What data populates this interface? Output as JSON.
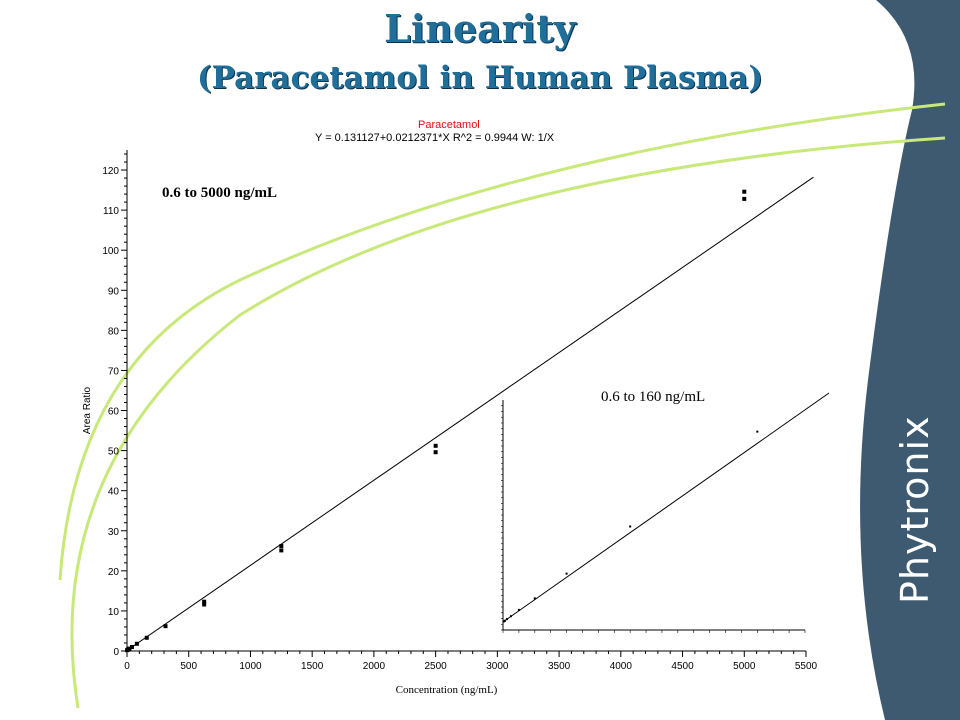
{
  "title": {
    "line1": "Linearity",
    "line2": "(Paracetamol in Human Plasma)"
  },
  "calibration": {
    "analyte": "Paracetamol",
    "equation": "Y = 0.131127+0.0212371*X   R^2 = 0.9944   W: 1/X"
  },
  "brand": {
    "name": "Phytronix"
  },
  "colors": {
    "title": "#1f6f9a",
    "brand_panel": "#3e5a70",
    "swoosh": "#c8e87a",
    "analyte_label": "#dd1111"
  },
  "chart_data": [
    {
      "type": "scatter",
      "annotation": "0.6 to 5000 ng/mL",
      "xlabel": "Concentration (ng/mL)",
      "ylabel": "Area Ratio",
      "xlim": [
        0,
        5500
      ],
      "ylim": [
        0,
        125
      ],
      "xticks": [
        0,
        500,
        1000,
        1500,
        2000,
        2500,
        3000,
        3500,
        4000,
        4500,
        5000,
        5500
      ],
      "yticks": [
        0,
        10,
        20,
        30,
        40,
        50,
        60,
        70,
        80,
        90,
        100,
        110,
        120
      ],
      "grid": false,
      "fit": {
        "intercept": 0.131127,
        "slope": 0.0212371,
        "x_range": [
          0,
          5500
        ]
      },
      "series": [
        {
          "values": [
            {
              "x": 0.6,
              "y": 0.2
            },
            {
              "x": 5,
              "y": 0.3
            },
            {
              "x": 10,
              "y": 0.4
            },
            {
              "x": 20,
              "y": 0.6
            },
            {
              "x": 40,
              "y": 1.0
            },
            {
              "x": 80,
              "y": 1.8
            },
            {
              "x": 160,
              "y": 3.3
            },
            {
              "x": 312,
              "y": 6.2
            },
            {
              "x": 625,
              "y": 11.6
            },
            {
              "x": 625,
              "y": 12.3
            },
            {
              "x": 1250,
              "y": 25.1
            },
            {
              "x": 1250,
              "y": 26.2
            },
            {
              "x": 2500,
              "y": 49.6
            },
            {
              "x": 2500,
              "y": 51.2
            },
            {
              "x": 5000,
              "y": 112.8
            },
            {
              "x": 5000,
              "y": 114.6
            }
          ]
        }
      ]
    },
    {
      "type": "scatter",
      "annotation": "0.6 to 160 ng/mL",
      "fit_line": true,
      "series": [
        {
          "values": [
            {
              "x": 0.6,
              "y": 0.15
            },
            {
              "x": 1.2,
              "y": 0.16
            },
            {
              "x": 2.5,
              "y": 0.19
            },
            {
              "x": 5,
              "y": 0.24
            },
            {
              "x": 10,
              "y": 0.35
            },
            {
              "x": 20,
              "y": 0.55
            },
            {
              "x": 40,
              "y": 0.98
            },
            {
              "x": 80,
              "y": 1.8
            },
            {
              "x": 160,
              "y": 3.45
            }
          ]
        }
      ]
    }
  ]
}
